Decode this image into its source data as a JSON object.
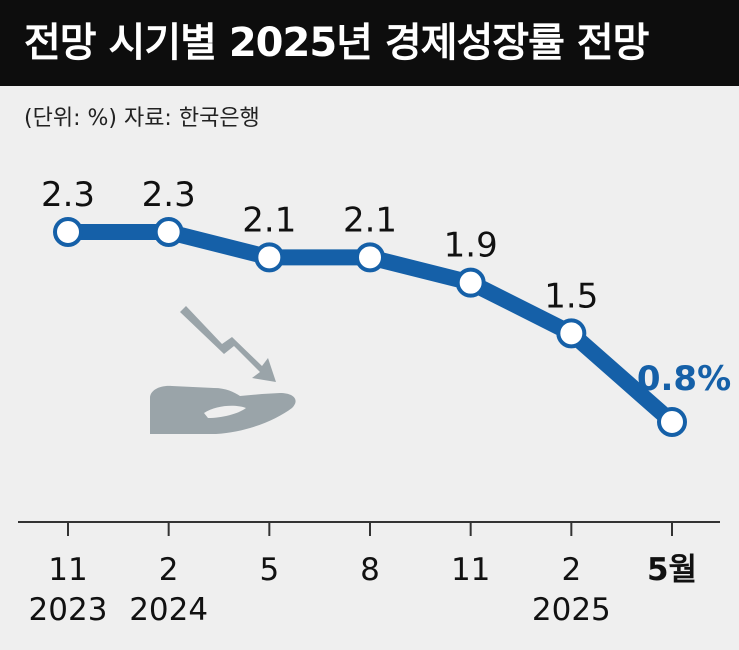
{
  "title": "전망 시기별 2025년 경제성장률 전망",
  "unit_source": "(단위: %)  자료: 한국은행",
  "colors": {
    "line": "#1560a8",
    "marker_fill": "#ffffff",
    "icon": "#9aa4a9",
    "background": "#efefef"
  },
  "chart_data": {
    "type": "line",
    "title": "전망 시기별 2025년 경제성장률 전망",
    "xlabel": "",
    "ylabel": "",
    "categories": [
      {
        "month": "11",
        "year": "2023"
      },
      {
        "month": "2",
        "year": "2024"
      },
      {
        "month": "5",
        "year": ""
      },
      {
        "month": "8",
        "year": ""
      },
      {
        "month": "11",
        "year": ""
      },
      {
        "month": "2",
        "year": "2025"
      },
      {
        "month": "5월",
        "year": ""
      }
    ],
    "values": [
      2.3,
      2.3,
      2.1,
      2.1,
      1.9,
      1.5,
      0.8
    ],
    "value_labels": [
      "2.3",
      "2.3",
      "2.1",
      "2.1",
      "1.9",
      "1.5",
      "0.8%"
    ],
    "grid": false,
    "legend": "none"
  }
}
